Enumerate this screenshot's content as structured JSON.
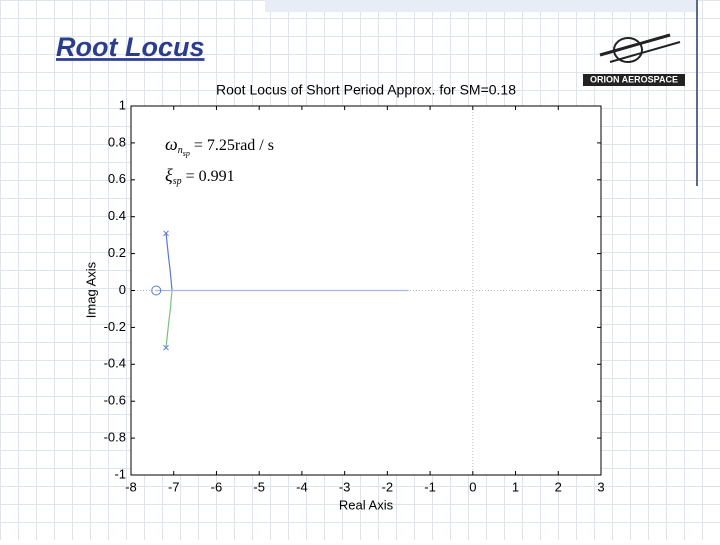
{
  "slide": {
    "title": "Root Locus",
    "logo": "ORION AEROSPACE"
  },
  "chart_data": {
    "type": "line",
    "title": "Root Locus of Short Period Approx. for SM=0.18",
    "xlabel": "Real Axis",
    "ylabel": "Imag Axis",
    "xlim": [
      -8,
      3
    ],
    "xticks": [
      -8,
      -7,
      -6,
      -5,
      -4,
      -3,
      -2,
      -1,
      0,
      1,
      2,
      3
    ],
    "ylim": [
      -1,
      1
    ],
    "yticks": [
      -1,
      -0.8,
      -0.6,
      -0.4,
      -0.2,
      0,
      0.2,
      0.4,
      0.6,
      0.8,
      1
    ],
    "series": [
      {
        "color": "#5a78d0",
        "x": [
          -7.18,
          -7.13,
          -7.08,
          -7.04
        ],
        "y": [
          0.31,
          0.2,
          0.1,
          0
        ]
      },
      {
        "color": "#7cc07c",
        "x": [
          -7.18,
          -7.13,
          -7.08,
          -7.04
        ],
        "y": [
          -0.31,
          -0.2,
          -0.1,
          0
        ]
      },
      {
        "color": "#a9b8e0",
        "x": [
          -7.04,
          -1.5
        ],
        "y": [
          0,
          0
        ]
      },
      {
        "color": "#a9b8e0",
        "x": [
          -7.04,
          -7.41
        ],
        "y": [
          0,
          0
        ]
      }
    ],
    "poles": {
      "color": "#5a78d0",
      "x": [
        -7.18,
        -7.18
      ],
      "y": [
        0.31,
        -0.31
      ]
    },
    "zeros": {
      "color": "#5a78d0",
      "x": [
        -7.41
      ],
      "y": [
        0
      ]
    },
    "annotations": [
      {
        "symbol": "ω",
        "subscript": "n",
        "subsubscript": "sp",
        "text": "= 7.25rad / s"
      },
      {
        "symbol": "ξ",
        "subscript": "sp",
        "text": "= 0.991"
      }
    ]
  }
}
